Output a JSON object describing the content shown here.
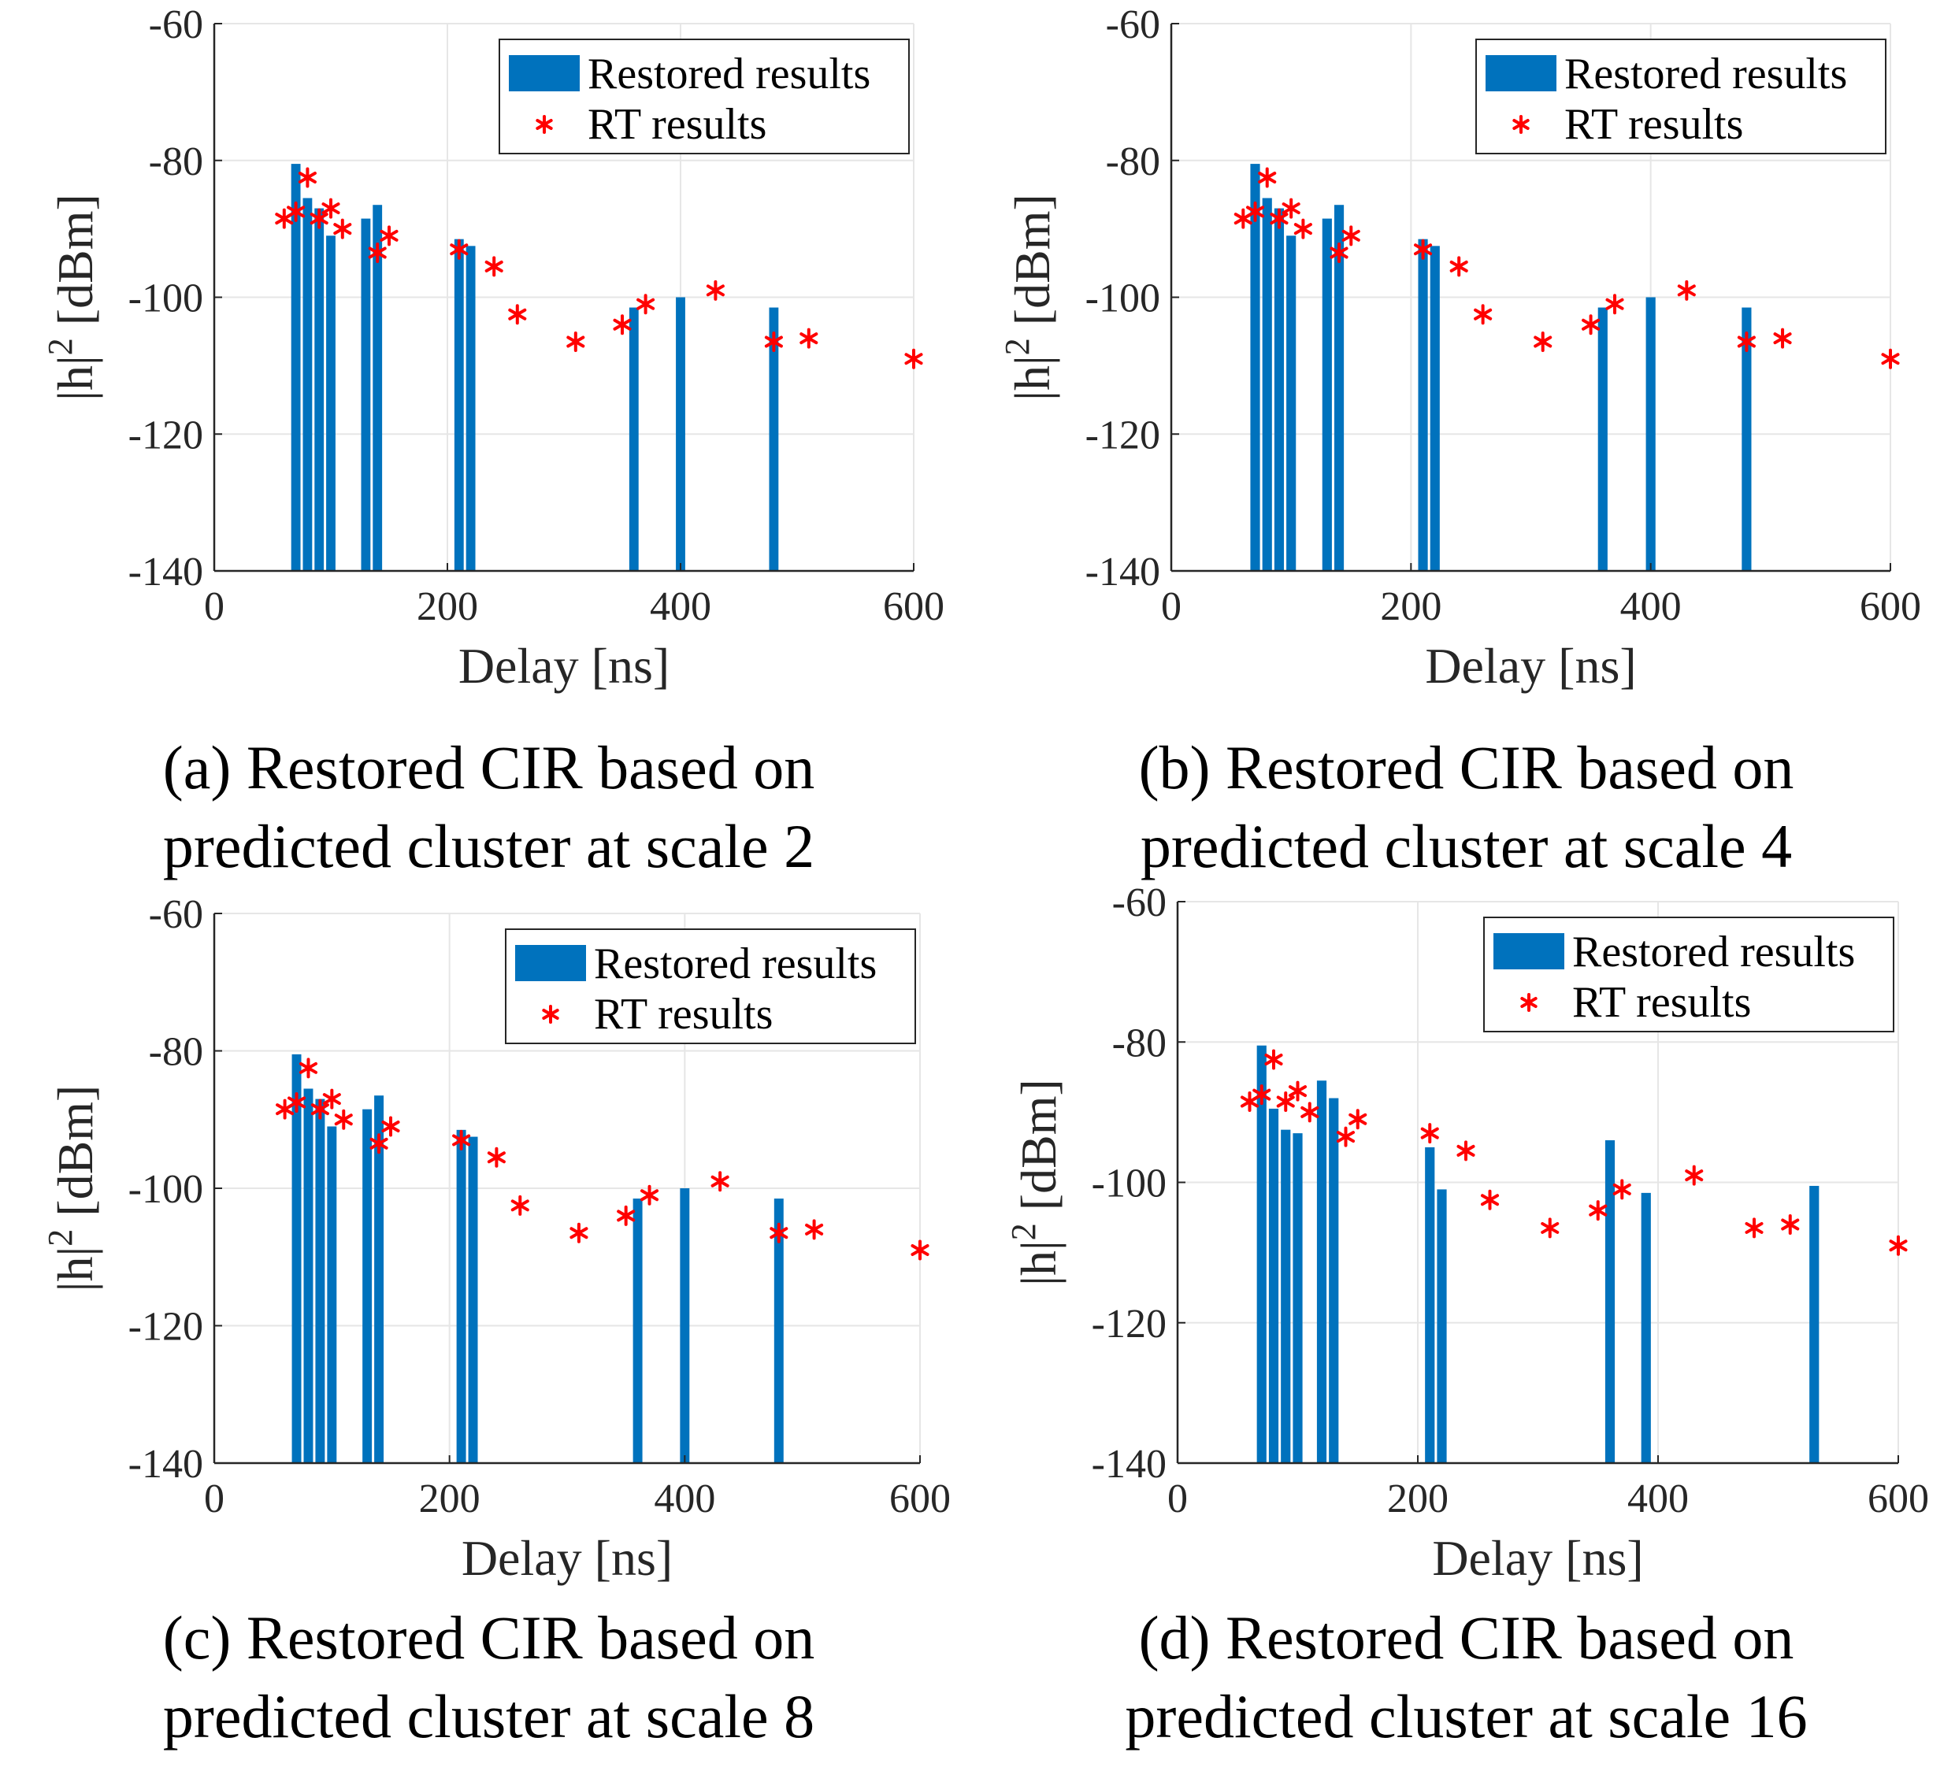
{
  "colors": {
    "bar": "#0072BD",
    "marker": "#FF0000",
    "grid": "#e6e6e6",
    "axis": "#262626"
  },
  "chart_data": [
    {
      "type": "bar",
      "panel": "a",
      "caption_line1": "(a) Restored CIR based on",
      "caption_line2": "predicted cluster at scale 2",
      "xlabel": "Delay [ns]",
      "ylabel_main": "|h|",
      "ylabel_sup": "2",
      "ylabel_unit": " [dBm]",
      "xlim": [
        0,
        600
      ],
      "ylim": [
        -140,
        -60
      ],
      "xticks": [
        "0",
        "200",
        "400",
        "600"
      ],
      "yticks": [
        "-60",
        "-80",
        "-100",
        "-120",
        "-140"
      ],
      "grid": true,
      "legend_position": "top-right",
      "series": [
        {
          "name": "Restored results",
          "kind": "bar",
          "x": [
            70,
            80,
            90,
            100,
            130,
            140,
            210,
            220,
            360,
            400,
            480
          ],
          "y": [
            -80.5,
            -85.5,
            -87,
            -91,
            -88.5,
            -86.5,
            -91.5,
            -92.5,
            -101.5,
            -100,
            -101.5
          ]
        },
        {
          "name": "RT results",
          "kind": "marker",
          "x": [
            60,
            70,
            80,
            90,
            100,
            110,
            140,
            150,
            210,
            240,
            260,
            310,
            350,
            370,
            430,
            480,
            510,
            600
          ],
          "y": [
            -88.5,
            -87.5,
            -82.5,
            -88.5,
            -87,
            -90,
            -93.5,
            -91,
            -93,
            -95.5,
            -102.5,
            -106.5,
            -104,
            -101,
            -99,
            -106.5,
            -106,
            -109
          ]
        }
      ]
    },
    {
      "type": "bar",
      "panel": "b",
      "caption_line1": "(b) Restored CIR based on",
      "caption_line2": "predicted cluster at scale 4",
      "xlabel": "Delay [ns]",
      "ylabel_main": "|h|",
      "ylabel_sup": "2",
      "ylabel_unit": " [dBm]",
      "xlim": [
        0,
        600
      ],
      "ylim": [
        -140,
        -60
      ],
      "xticks": [
        "0",
        "200",
        "400",
        "600"
      ],
      "yticks": [
        "-60",
        "-80",
        "-100",
        "-120",
        "-140"
      ],
      "grid": true,
      "legend_position": "top-right",
      "series": [
        {
          "name": "Restored results",
          "kind": "bar",
          "x": [
            70,
            80,
            90,
            100,
            130,
            140,
            210,
            220,
            360,
            400,
            480
          ],
          "y": [
            -80.5,
            -85.5,
            -87,
            -91,
            -88.5,
            -86.5,
            -91.5,
            -92.5,
            -101.5,
            -100,
            -101.5
          ]
        },
        {
          "name": "RT results",
          "kind": "marker",
          "x": [
            60,
            70,
            80,
            90,
            100,
            110,
            140,
            150,
            210,
            240,
            260,
            310,
            350,
            370,
            430,
            480,
            510,
            600
          ],
          "y": [
            -88.5,
            -87.5,
            -82.5,
            -88.5,
            -87,
            -90,
            -93.5,
            -91,
            -93,
            -95.5,
            -102.5,
            -106.5,
            -104,
            -101,
            -99,
            -106.5,
            -106,
            -109
          ]
        }
      ]
    },
    {
      "type": "bar",
      "panel": "c",
      "caption_line1": "(c) Restored CIR based on",
      "caption_line2": "predicted cluster at scale 8",
      "xlabel": "Delay [ns]",
      "ylabel_main": "|h|",
      "ylabel_sup": "2",
      "ylabel_unit": " [dBm]",
      "xlim": [
        0,
        600
      ],
      "ylim": [
        -140,
        -60
      ],
      "xticks": [
        "0",
        "200",
        "400",
        "600"
      ],
      "yticks": [
        "-60",
        "-80",
        "-100",
        "-120",
        "-140"
      ],
      "grid": true,
      "legend_position": "top-right",
      "series": [
        {
          "name": "Restored results",
          "kind": "bar",
          "x": [
            70,
            80,
            90,
            100,
            130,
            140,
            210,
            220,
            360,
            400,
            480
          ],
          "y": [
            -80.5,
            -85.5,
            -87,
            -91,
            -88.5,
            -86.5,
            -91.5,
            -92.5,
            -101.5,
            -100,
            -101.5
          ]
        },
        {
          "name": "RT results",
          "kind": "marker",
          "x": [
            60,
            70,
            80,
            90,
            100,
            110,
            140,
            150,
            210,
            240,
            260,
            310,
            350,
            370,
            430,
            480,
            510,
            600
          ],
          "y": [
            -88.5,
            -87.5,
            -82.5,
            -88.5,
            -87,
            -90,
            -93.5,
            -91,
            -93,
            -95.5,
            -102.5,
            -106.5,
            -104,
            -101,
            -99,
            -106.5,
            -106,
            -109
          ]
        }
      ]
    },
    {
      "type": "bar",
      "panel": "d",
      "caption_line1": "(d) Restored CIR based on",
      "caption_line2": "predicted cluster at scale 16",
      "xlabel": "Delay [ns]",
      "ylabel_main": "|h|",
      "ylabel_sup": "2",
      "ylabel_unit": " [dBm]",
      "xlim": [
        0,
        600
      ],
      "ylim": [
        -140,
        -60
      ],
      "xticks": [
        "0",
        "200",
        "400",
        "600"
      ],
      "yticks": [
        "-60",
        "-80",
        "-100",
        "-120",
        "-140"
      ],
      "grid": true,
      "legend_position": "top-right",
      "series": [
        {
          "name": "Restored results",
          "kind": "bar",
          "x": [
            70,
            80,
            90,
            100,
            120,
            130,
            210,
            220,
            360,
            390,
            530
          ],
          "y": [
            -80.5,
            -89.5,
            -92.5,
            -93,
            -85.5,
            -88,
            -95,
            -101,
            -94,
            -101.5,
            -100.5
          ]
        },
        {
          "name": "RT results",
          "kind": "marker",
          "x": [
            60,
            70,
            80,
            90,
            100,
            110,
            140,
            150,
            210,
            240,
            260,
            310,
            350,
            370,
            430,
            480,
            510,
            600
          ],
          "y": [
            -88.5,
            -87.5,
            -82.5,
            -88.5,
            -87,
            -90,
            -93.5,
            -91,
            -93,
            -95.5,
            -102.5,
            -106.5,
            -104,
            -101,
            -99,
            -106.5,
            -106,
            -109
          ]
        }
      ]
    }
  ]
}
